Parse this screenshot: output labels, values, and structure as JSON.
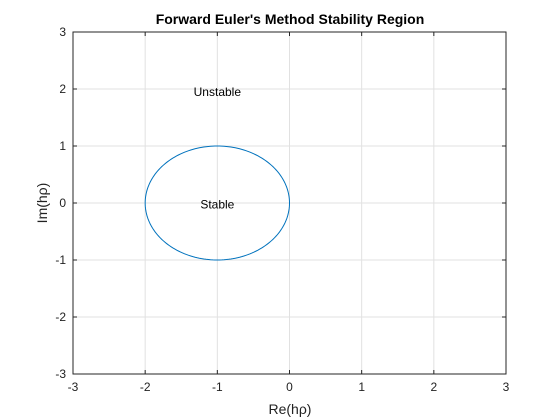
{
  "chart_data": {
    "type": "line",
    "title": "Forward Euler's Method Stability Region",
    "xlabel": "Re(hρ)",
    "ylabel": "Im(hρ)",
    "xlim": [
      -3,
      3
    ],
    "ylim": [
      -3,
      3
    ],
    "xticks": [
      -3,
      -2,
      -1,
      0,
      1,
      2,
      3
    ],
    "yticks": [
      -3,
      -2,
      -1,
      0,
      1,
      2,
      3
    ],
    "xtick_labels": [
      "-3",
      "-2",
      "-1",
      "0",
      "1",
      "2",
      "3"
    ],
    "ytick_labels": [
      "-3",
      "-2",
      "-1",
      "0",
      "1",
      "2",
      "3"
    ],
    "grid": true,
    "series": [
      {
        "shape": "circle",
        "center": [
          -1,
          0
        ],
        "radius": 1,
        "color": "#0072BD"
      }
    ],
    "annotations": [
      {
        "text": "Unstable",
        "x": -1,
        "y": 1.95
      },
      {
        "text": "Stable",
        "x": -1,
        "y": -0.03
      }
    ]
  }
}
